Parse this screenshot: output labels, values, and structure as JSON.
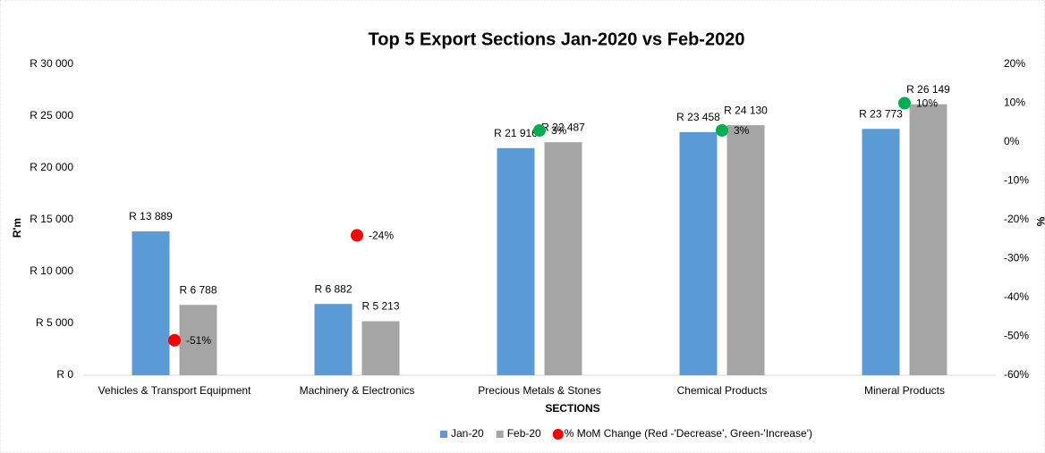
{
  "chart_data": {
    "type": "bar",
    "title": "Top 5 Export Sections Jan-2020 vs Feb-2020",
    "x_label": "SECTIONS",
    "y_label": "R'm",
    "y2_label": "%",
    "categories": [
      "Vehicles & Transport Equipment",
      "Machinery & Electronics",
      "Precious Metals & Stones",
      "Chemical Products",
      "Mineral Products"
    ],
    "series": [
      {
        "name": "Jan-20",
        "color": "#5b9bd5",
        "values": [
          13889,
          6882,
          21916,
          23458,
          23773
        ],
        "value_labels": [
          "R 13 889",
          "R 6 882",
          "R 21 916",
          "R 23 458",
          "R 23 773"
        ]
      },
      {
        "name": "Feb-20",
        "color": "#a5a5a5",
        "values": [
          6788,
          5213,
          22487,
          24130,
          26149
        ],
        "value_labels": [
          "R 6 788",
          "R 5 213",
          "R 22 487",
          "R 24 130",
          "R 26 149"
        ]
      },
      {
        "name": "% MoM Change (Red -'Decrease', Green-'Increase')",
        "type": "scatter",
        "axis": "y2",
        "color": "#ff0000",
        "point_colors": [
          "#ff0000",
          "#ff0000",
          "#00b050",
          "#00b050",
          "#00b050"
        ],
        "values": [
          -51,
          -24,
          3,
          3,
          10
        ],
        "value_labels": [
          "-51%",
          "-24%",
          "3%",
          "3%",
          "10%"
        ]
      }
    ],
    "ylim": [
      0,
      30000
    ],
    "yticks": [
      {
        "value": 0,
        "label": "R 0"
      },
      {
        "value": 5000,
        "label": "R 5 000"
      },
      {
        "value": 10000,
        "label": "R 10 000"
      },
      {
        "value": 15000,
        "label": "R 15 000"
      },
      {
        "value": 20000,
        "label": "R 20 000"
      },
      {
        "value": 25000,
        "label": "R 25 000"
      },
      {
        "value": 30000,
        "label": "R 30 000"
      }
    ],
    "y2lim": [
      -60,
      20
    ],
    "y2ticks": [
      {
        "value": -60,
        "label": "-60%"
      },
      {
        "value": -50,
        "label": "-50%"
      },
      {
        "value": -40,
        "label": "-40%"
      },
      {
        "value": -30,
        "label": "-30%"
      },
      {
        "value": -20,
        "label": "-20%"
      },
      {
        "value": -10,
        "label": "-10%"
      },
      {
        "value": 0,
        "label": "0%"
      },
      {
        "value": 10,
        "label": "10%"
      },
      {
        "value": 20,
        "label": "20%"
      }
    ],
    "legend": "bottom",
    "grid": false
  }
}
